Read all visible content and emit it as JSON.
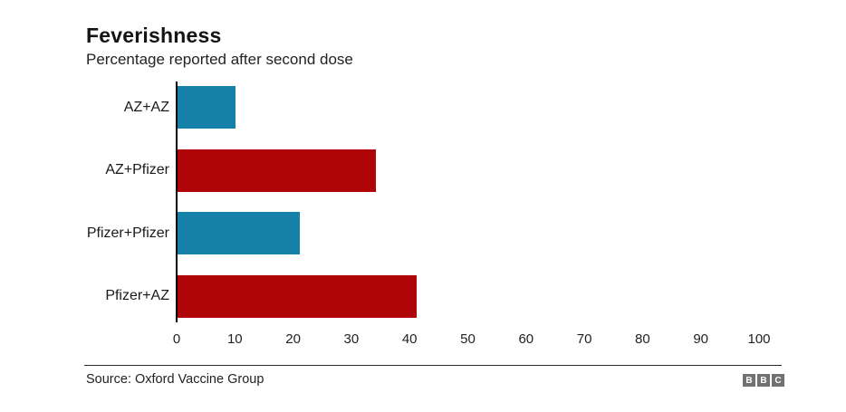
{
  "chart_data": {
    "type": "bar",
    "orientation": "horizontal",
    "title": "Feverishness",
    "subtitle": "Percentage reported after second dose",
    "categories": [
      "AZ+AZ",
      "AZ+Pfizer",
      "Pfizer+Pfizer",
      "Pfizer+AZ"
    ],
    "values": [
      10,
      34,
      21,
      41
    ],
    "bar_colors": [
      "#1581A8",
      "#B00508",
      "#1581A8",
      "#B00508"
    ],
    "xlabel": "",
    "ylabel": "",
    "xlim": [
      0,
      100
    ],
    "xticks": [
      0,
      10,
      20,
      30,
      40,
      50,
      60,
      70,
      80,
      90,
      100
    ],
    "grid": false,
    "legend": false,
    "axis_color": "#000000"
  },
  "footer": {
    "source": "Source: Oxford Vaccine Group",
    "logo_letters": [
      "B",
      "B",
      "C"
    ],
    "logo_color": "#717171"
  }
}
